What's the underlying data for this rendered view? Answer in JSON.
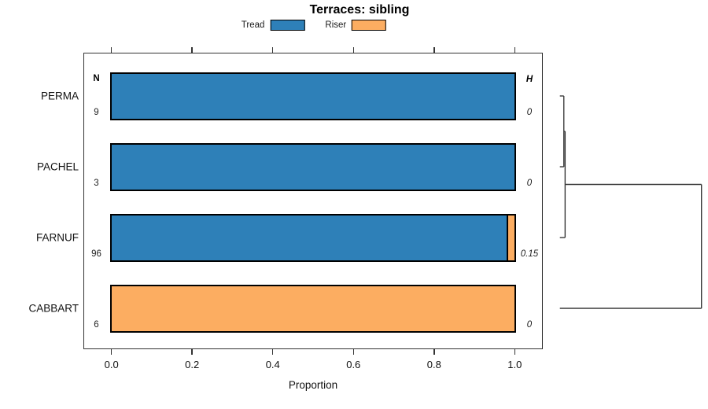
{
  "chart_data": {
    "type": "bar",
    "orientation": "horizontal-stacked",
    "title": "Terraces: sibling",
    "xlabel": "Proportion",
    "xlim": [
      0,
      1
    ],
    "x_ticks": [
      0,
      0.2,
      0.4,
      0.6,
      0.8,
      1.0
    ],
    "x_tick_labels": [
      "0.0",
      "0.2",
      "0.4",
      "0.6",
      "0.8",
      "1.0"
    ],
    "grid": false,
    "legend": {
      "position": "top",
      "entries": [
        {
          "label": "Tread",
          "color": "#2E80B8"
        },
        {
          "label": "Riser",
          "color": "#FCAD61"
        }
      ]
    },
    "columns": {
      "n_header": "N",
      "h_header": "H"
    },
    "categories": [
      "PERMA",
      "PACHEL",
      "FARNUF",
      "CABBART"
    ],
    "rows": [
      {
        "category": "PERMA",
        "n": "9",
        "h": "0",
        "segments": [
          {
            "series": "Tread",
            "value": 1.0
          }
        ]
      },
      {
        "category": "PACHEL",
        "n": "3",
        "h": "0",
        "segments": [
          {
            "series": "Tread",
            "value": 1.0
          }
        ]
      },
      {
        "category": "FARNUF",
        "n": "96",
        "h": "0.15",
        "segments": [
          {
            "series": "Tread",
            "value": 0.98
          },
          {
            "series": "Riser",
            "value": 0.02
          }
        ]
      },
      {
        "category": "CABBART",
        "n": "6",
        "h": "0",
        "segments": [
          {
            "series": "Riser",
            "value": 1.0
          }
        ]
      }
    ],
    "dendrogram": {
      "side": "right",
      "leaves": [
        "PERMA",
        "PACHEL",
        "FARNUF",
        "CABBART"
      ],
      "merges": [
        {
          "clusters": [
            [
              "PERMA"
            ],
            [
              "PACHEL"
            ]
          ],
          "height": 0.028
        },
        {
          "clusters": [
            [
              "PERMA",
              "PACHEL"
            ],
            [
              "FARNUF"
            ]
          ],
          "height": 0.037
        },
        {
          "clusters": [
            [
              "PERMA",
              "PACHEL",
              "FARNUF"
            ],
            [
              "CABBART"
            ]
          ],
          "height": 1.0
        }
      ]
    },
    "colors": {
      "tread": "#2E80B8",
      "riser": "#FCAD61",
      "axis": "#333333",
      "text": "#000000"
    }
  }
}
